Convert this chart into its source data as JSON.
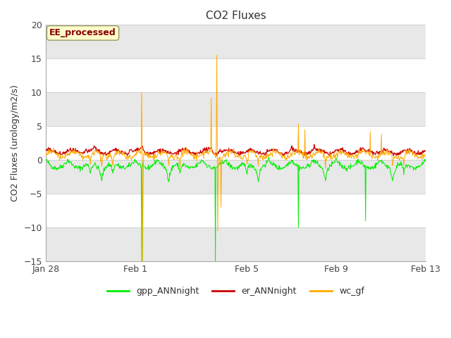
{
  "title": "CO2 Fluxes",
  "ylabel": "CO2 Fluxes (urology/m2/s)",
  "ylim": [
    -15,
    20
  ],
  "yticks": [
    -15,
    -10,
    -5,
    0,
    5,
    10,
    15,
    20
  ],
  "bg_color": "#ffffff",
  "plot_bg_color": "#ffffff",
  "band_color_dark": "#e8e8e8",
  "band_color_light": "#ffffff",
  "gpp_color": "#00ee00",
  "er_color": "#cc0000",
  "wc_color": "#ffaa00",
  "annotation_text": "EE_processed",
  "annotation_color": "#880000",
  "annotation_bg": "#ffffcc",
  "annotation_edge": "#999966",
  "legend_labels": [
    "gpp_ANNnight",
    "er_ANNnight",
    "wc_gf"
  ],
  "xtick_labels": [
    "Jan 28",
    "Feb 1",
    "Feb 5",
    "Feb 9",
    "Feb 13"
  ],
  "xtick_positions": [
    0,
    4,
    9,
    13,
    17
  ],
  "num_days": 17,
  "points_per_day": 48,
  "title_fontsize": 11,
  "label_fontsize": 9,
  "tick_fontsize": 9,
  "legend_fontsize": 9
}
